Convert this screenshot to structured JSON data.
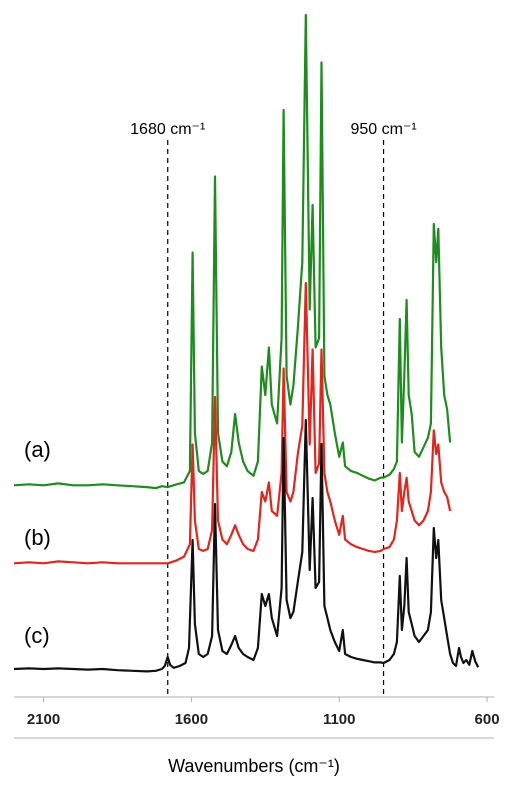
{
  "chart_data": {
    "type": "line",
    "xlabel": "Wavenumbers (cm⁻¹)",
    "x_reversed": true,
    "xlim": [
      2200,
      590
    ],
    "xticks": [
      2100,
      1600,
      1100,
      600
    ],
    "reference_lines": [
      {
        "x": 1680,
        "label": "1680 cm⁻¹"
      },
      {
        "x": 950,
        "label": "950 cm⁻¹"
      }
    ],
    "series": [
      {
        "name": "(a)",
        "color": "#1e8c1e",
        "points": [
          [
            2200,
            0.05
          ],
          [
            2150,
            0.06
          ],
          [
            2100,
            0.05
          ],
          [
            2050,
            0.07
          ],
          [
            2000,
            0.05
          ],
          [
            1950,
            0.05
          ],
          [
            1900,
            0.06
          ],
          [
            1850,
            0.05
          ],
          [
            1800,
            0.04
          ],
          [
            1750,
            0.03
          ],
          [
            1720,
            0.02
          ],
          [
            1700,
            0.04
          ],
          [
            1680,
            0.03
          ],
          [
            1650,
            0.06
          ],
          [
            1625,
            0.08
          ],
          [
            1605,
            0.2
          ],
          [
            1596,
            2.5
          ],
          [
            1588,
            0.6
          ],
          [
            1575,
            0.2
          ],
          [
            1560,
            0.17
          ],
          [
            1545,
            0.2
          ],
          [
            1530,
            0.5
          ],
          [
            1520,
            3.3
          ],
          [
            1510,
            0.6
          ],
          [
            1495,
            0.3
          ],
          [
            1480,
            0.25
          ],
          [
            1465,
            0.4
          ],
          [
            1452,
            0.8
          ],
          [
            1440,
            0.5
          ],
          [
            1425,
            0.3
          ],
          [
            1410,
            0.2
          ],
          [
            1390,
            0.15
          ],
          [
            1375,
            0.3
          ],
          [
            1362,
            1.3
          ],
          [
            1350,
            1.0
          ],
          [
            1338,
            1.5
          ],
          [
            1328,
            0.9
          ],
          [
            1310,
            0.7
          ],
          [
            1295,
            1.6
          ],
          [
            1288,
            4.0
          ],
          [
            1278,
            1.2
          ],
          [
            1265,
            0.9
          ],
          [
            1255,
            1.1
          ],
          [
            1240,
            1.7
          ],
          [
            1225,
            2.4
          ],
          [
            1213,
            5.0
          ],
          [
            1200,
            1.9
          ],
          [
            1190,
            3.0
          ],
          [
            1180,
            1.5
          ],
          [
            1168,
            1.6
          ],
          [
            1160,
            4.5
          ],
          [
            1150,
            1.2
          ],
          [
            1140,
            1.0
          ],
          [
            1130,
            0.9
          ],
          [
            1115,
            0.6
          ],
          [
            1100,
            0.35
          ],
          [
            1088,
            0.5
          ],
          [
            1080,
            0.25
          ],
          [
            1060,
            0.2
          ],
          [
            1040,
            0.18
          ],
          [
            1020,
            0.15
          ],
          [
            1000,
            0.12
          ],
          [
            980,
            0.1
          ],
          [
            960,
            0.13
          ],
          [
            950,
            0.13
          ],
          [
            930,
            0.16
          ],
          [
            915,
            0.22
          ],
          [
            905,
            0.3
          ],
          [
            895,
            1.8
          ],
          [
            888,
            0.5
          ],
          [
            880,
            1.2
          ],
          [
            872,
            2.0
          ],
          [
            865,
            1.0
          ],
          [
            855,
            0.8
          ],
          [
            845,
            0.4
          ],
          [
            830,
            0.35
          ],
          [
            815,
            0.45
          ],
          [
            800,
            0.55
          ],
          [
            790,
            0.7
          ],
          [
            780,
            2.8
          ],
          [
            772,
            2.4
          ],
          [
            765,
            2.75
          ],
          [
            755,
            1.5
          ],
          [
            745,
            1.0
          ],
          [
            735,
            0.85
          ],
          [
            725,
            0.5
          ]
        ]
      },
      {
        "name": "(b)",
        "color": "#e0261e",
        "points": [
          [
            2200,
            0.05
          ],
          [
            2150,
            0.06
          ],
          [
            2100,
            0.05
          ],
          [
            2050,
            0.07
          ],
          [
            2000,
            0.06
          ],
          [
            1950,
            0.05
          ],
          [
            1900,
            0.06
          ],
          [
            1850,
            0.05
          ],
          [
            1800,
            0.05
          ],
          [
            1750,
            0.05
          ],
          [
            1700,
            0.05
          ],
          [
            1680,
            0.05
          ],
          [
            1650,
            0.08
          ],
          [
            1625,
            0.12
          ],
          [
            1605,
            0.25
          ],
          [
            1596,
            1.3
          ],
          [
            1588,
            0.5
          ],
          [
            1575,
            0.2
          ],
          [
            1560,
            0.18
          ],
          [
            1545,
            0.2
          ],
          [
            1530,
            0.4
          ],
          [
            1520,
            1.8
          ],
          [
            1510,
            0.5
          ],
          [
            1495,
            0.3
          ],
          [
            1480,
            0.25
          ],
          [
            1465,
            0.35
          ],
          [
            1452,
            0.45
          ],
          [
            1440,
            0.35
          ],
          [
            1425,
            0.25
          ],
          [
            1410,
            0.2
          ],
          [
            1390,
            0.18
          ],
          [
            1375,
            0.3
          ],
          [
            1362,
            0.8
          ],
          [
            1350,
            0.7
          ],
          [
            1338,
            0.9
          ],
          [
            1328,
            0.6
          ],
          [
            1310,
            0.55
          ],
          [
            1295,
            1.0
          ],
          [
            1288,
            2.1
          ],
          [
            1278,
            0.8
          ],
          [
            1265,
            0.7
          ],
          [
            1255,
            0.8
          ],
          [
            1240,
            1.2
          ],
          [
            1225,
            1.5
          ],
          [
            1213,
            3.0
          ],
          [
            1200,
            1.3
          ],
          [
            1190,
            2.3
          ],
          [
            1180,
            1.0
          ],
          [
            1168,
            1.1
          ],
          [
            1160,
            2.3
          ],
          [
            1150,
            1.0
          ],
          [
            1140,
            0.8
          ],
          [
            1130,
            0.7
          ],
          [
            1115,
            0.5
          ],
          [
            1100,
            0.35
          ],
          [
            1088,
            0.55
          ],
          [
            1080,
            0.3
          ],
          [
            1060,
            0.25
          ],
          [
            1040,
            0.22
          ],
          [
            1020,
            0.2
          ],
          [
            1000,
            0.18
          ],
          [
            980,
            0.17
          ],
          [
            960,
            0.18
          ],
          [
            950,
            0.2
          ],
          [
            930,
            0.22
          ],
          [
            915,
            0.3
          ],
          [
            905,
            0.5
          ],
          [
            895,
            1.0
          ],
          [
            888,
            0.6
          ],
          [
            880,
            0.8
          ],
          [
            872,
            0.95
          ],
          [
            865,
            0.7
          ],
          [
            855,
            0.6
          ],
          [
            845,
            0.5
          ],
          [
            830,
            0.45
          ],
          [
            815,
            0.5
          ],
          [
            800,
            0.6
          ],
          [
            790,
            0.8
          ],
          [
            780,
            1.45
          ],
          [
            772,
            1.2
          ],
          [
            765,
            1.3
          ],
          [
            755,
            0.9
          ],
          [
            745,
            0.8
          ],
          [
            735,
            0.75
          ],
          [
            725,
            0.6
          ]
        ]
      },
      {
        "name": "(c)",
        "color": "#111111",
        "points": [
          [
            2200,
            0.05
          ],
          [
            2150,
            0.06
          ],
          [
            2100,
            0.05
          ],
          [
            2050,
            0.06
          ],
          [
            2000,
            0.05
          ],
          [
            1950,
            0.04
          ],
          [
            1900,
            0.05
          ],
          [
            1850,
            0.03
          ],
          [
            1800,
            0.02
          ],
          [
            1750,
            0.01
          ],
          [
            1720,
            0.02
          ],
          [
            1700,
            0.05
          ],
          [
            1690,
            0.1
          ],
          [
            1680,
            0.25
          ],
          [
            1672,
            0.12
          ],
          [
            1660,
            0.07
          ],
          [
            1640,
            0.1
          ],
          [
            1620,
            0.15
          ],
          [
            1608,
            0.4
          ],
          [
            1596,
            2.2
          ],
          [
            1588,
            0.8
          ],
          [
            1575,
            0.3
          ],
          [
            1560,
            0.25
          ],
          [
            1545,
            0.3
          ],
          [
            1530,
            0.6
          ],
          [
            1520,
            2.8
          ],
          [
            1510,
            0.7
          ],
          [
            1495,
            0.35
          ],
          [
            1480,
            0.3
          ],
          [
            1465,
            0.45
          ],
          [
            1452,
            0.6
          ],
          [
            1440,
            0.4
          ],
          [
            1425,
            0.3
          ],
          [
            1410,
            0.25
          ],
          [
            1390,
            0.2
          ],
          [
            1375,
            0.4
          ],
          [
            1362,
            1.3
          ],
          [
            1350,
            1.1
          ],
          [
            1338,
            1.3
          ],
          [
            1328,
            0.9
          ],
          [
            1310,
            0.6
          ],
          [
            1295,
            1.4
          ],
          [
            1288,
            3.9
          ],
          [
            1278,
            1.2
          ],
          [
            1265,
            0.9
          ],
          [
            1255,
            1.0
          ],
          [
            1240,
            1.5
          ],
          [
            1225,
            2.0
          ],
          [
            1213,
            4.2
          ],
          [
            1200,
            1.7
          ],
          [
            1190,
            2.9
          ],
          [
            1180,
            1.4
          ],
          [
            1168,
            1.5
          ],
          [
            1160,
            3.8
          ],
          [
            1150,
            1.1
          ],
          [
            1140,
            0.9
          ],
          [
            1130,
            0.7
          ],
          [
            1115,
            0.5
          ],
          [
            1100,
            0.35
          ],
          [
            1088,
            0.7
          ],
          [
            1080,
            0.3
          ],
          [
            1060,
            0.25
          ],
          [
            1040,
            0.22
          ],
          [
            1020,
            0.2
          ],
          [
            1000,
            0.18
          ],
          [
            980,
            0.16
          ],
          [
            960,
            0.16
          ],
          [
            950,
            0.15
          ],
          [
            930,
            0.2
          ],
          [
            915,
            0.3
          ],
          [
            905,
            0.5
          ],
          [
            895,
            1.6
          ],
          [
            888,
            0.7
          ],
          [
            880,
            1.1
          ],
          [
            872,
            1.9
          ],
          [
            865,
            1.0
          ],
          [
            855,
            0.8
          ],
          [
            845,
            0.6
          ],
          [
            830,
            0.5
          ],
          [
            815,
            0.6
          ],
          [
            800,
            0.7
          ],
          [
            790,
            1.0
          ],
          [
            780,
            2.4
          ],
          [
            772,
            1.9
          ],
          [
            765,
            2.2
          ],
          [
            755,
            1.2
          ],
          [
            745,
            0.9
          ],
          [
            735,
            0.6
          ],
          [
            725,
            0.3
          ],
          [
            715,
            0.15
          ],
          [
            705,
            0.1
          ],
          [
            695,
            0.4
          ],
          [
            688,
            0.25
          ],
          [
            680,
            0.15
          ],
          [
            670,
            0.2
          ],
          [
            660,
            0.12
          ],
          [
            650,
            0.35
          ],
          [
            640,
            0.18
          ],
          [
            630,
            0.08
          ]
        ]
      }
    ]
  }
}
